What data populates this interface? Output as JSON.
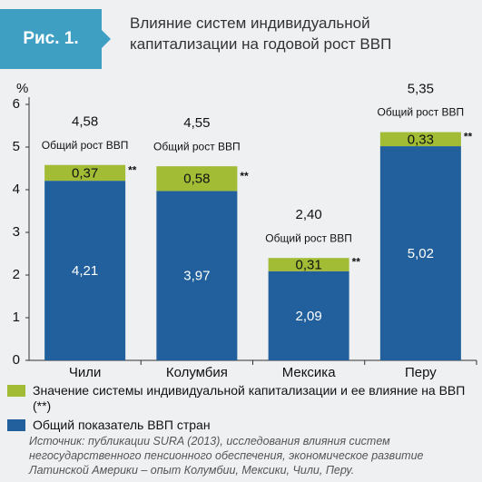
{
  "chart_data": {
    "type": "stacked_bar",
    "figure_label": "Рис. 1.",
    "title": "Влияние систем индивидуальной капитализации на годовой рост ВВП",
    "y_label": "%",
    "categories": [
      "Чили",
      "Колумбия",
      "Мексика",
      "Перу"
    ],
    "series": [
      {
        "name": "Общий показатель ВВП стран",
        "color": "#21609c",
        "values": [
          4.21,
          3.97,
          2.09,
          5.02
        ],
        "value_labels": [
          "4,21",
          "3,97",
          "2,09",
          "5,02"
        ],
        "label_color": "#ffffff"
      },
      {
        "name": "Значение системы индивидуальной капитализации и ее влияние на ВВП (**)",
        "color": "#a2bc36",
        "values": [
          0.37,
          0.58,
          0.31,
          0.33
        ],
        "value_labels": [
          "0,37",
          "0,58",
          "0,31",
          "0,33"
        ],
        "label_color": "#111111",
        "note_marker": "**"
      }
    ],
    "totals": {
      "label": "Общий рост ВВП",
      "values": [
        4.58,
        4.55,
        2.4,
        5.35
      ],
      "value_labels": [
        "4,58",
        "4,55",
        "2,40",
        "5,35"
      ]
    },
    "ylim": [
      0,
      6
    ],
    "yticks": [
      0,
      1,
      2,
      3,
      4,
      5,
      6
    ],
    "source": "Источник: публикации SURA (2013), исследования влияния систем негосударственного пенсионного обеспечения, экономическое развитие Латинской Америки – опыт Колумбии, Мексики, Чили, Перу."
  }
}
